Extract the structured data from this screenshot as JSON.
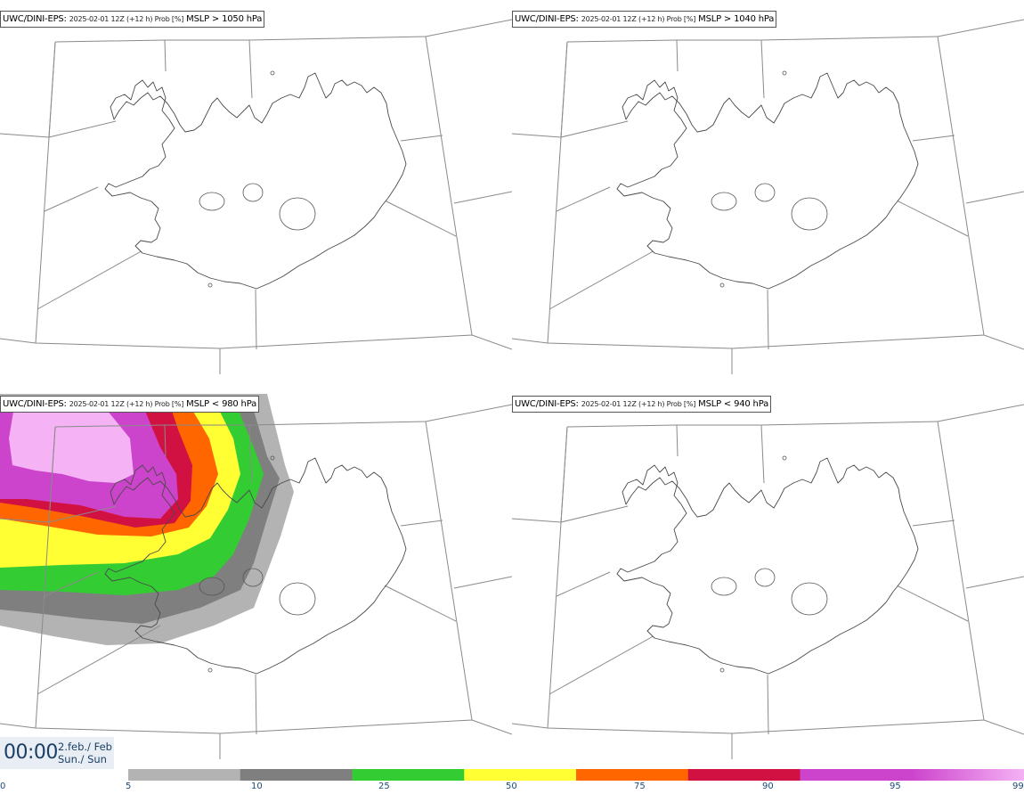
{
  "panels": [
    {
      "id": "tl",
      "model": "UWC/DINI-EPS",
      "info": "2025-02-01 12Z (+12 h) Prob [%]",
      "variable": "MSLP > 1050 hPa",
      "has_field": false
    },
    {
      "id": "tr",
      "model": "UWC/DINI-EPS",
      "info": "2025-02-01 12Z (+12 h) Prob [%]",
      "variable": "MSLP > 1040 hPa",
      "has_field": false
    },
    {
      "id": "bl",
      "model": "UWC/DINI-EPS",
      "info": "2025-02-01 12Z (+12 h) Prob [%]",
      "variable": "MSLP < 980 hPa",
      "has_field": true
    },
    {
      "id": "br",
      "model": "UWC/DINI-EPS",
      "info": "2025-02-01 12Z (+12 h) Prob [%]",
      "variable": "MSLP < 940 hPa",
      "has_field": false
    }
  ],
  "valid_time": {
    "clock": "00:00",
    "date_line1": "2.feb./ Feb",
    "date_line2": "Sun./ Sun"
  },
  "colorbar": {
    "unit": "Prob [%]",
    "ticks": [
      "0",
      "5",
      "10",
      "25",
      "50",
      "75",
      "90",
      "95",
      "99"
    ],
    "bins": [
      {
        "from": 5,
        "to": 10,
        "color": "#b3b3b3"
      },
      {
        "from": 10,
        "to": 25,
        "color": "#7f7f7f"
      },
      {
        "from": 25,
        "to": 50,
        "color": "#33cc33"
      },
      {
        "from": 50,
        "to": 75,
        "color": "#ffff33"
      },
      {
        "from": 75,
        "to": 90,
        "color": "#ff6600"
      },
      {
        "from": 90,
        "to": 95,
        "color": "#d11141"
      },
      {
        "from": 95,
        "to": 99,
        "color": "#cc44cc"
      },
      {
        "from": 99,
        "to": 100,
        "color": "#f5b3f5"
      }
    ]
  },
  "colors": {
    "coast": "#4a4a4a",
    "grid": "#8a8a8a",
    "prob_5": "#b3b3b3",
    "prob_10": "#7f7f7f",
    "prob_25": "#33cc33",
    "prob_50": "#ffff33",
    "prob_75": "#ff6600",
    "prob_90": "#d11141",
    "prob_95": "#cc44cc",
    "prob_99": "#f5b3f5"
  }
}
